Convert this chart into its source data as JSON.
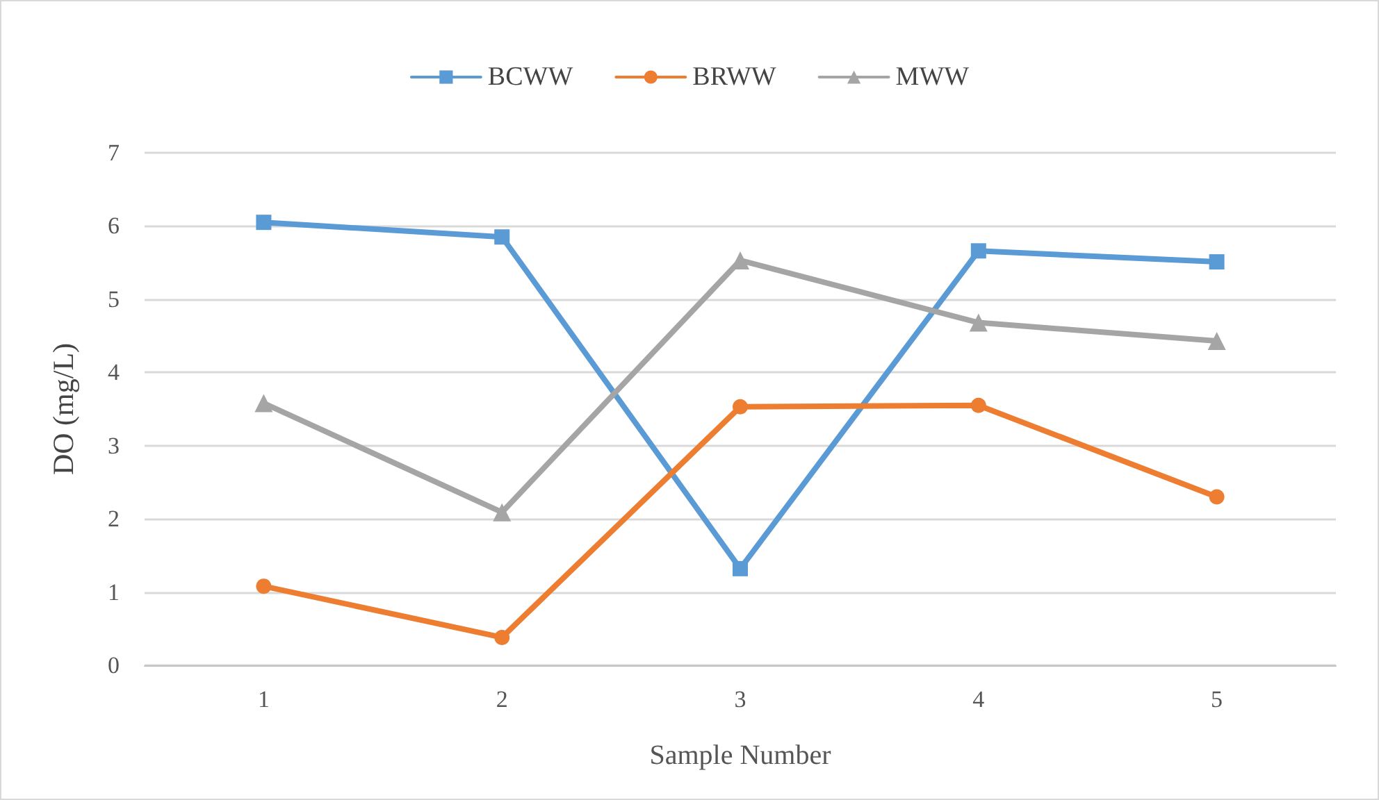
{
  "chart_data": {
    "type": "line",
    "xlabel": "Sample Number",
    "ylabel": "DO (mg/L)",
    "categories": [
      "1",
      "2",
      "3",
      "4",
      "5"
    ],
    "series": [
      {
        "name": "BCWW",
        "color": "#5b9bd5",
        "marker": "square",
        "values": [
          6.05,
          5.85,
          1.32,
          5.66,
          5.51
        ]
      },
      {
        "name": "BRWW",
        "color": "#ed7d31",
        "marker": "circle",
        "values": [
          1.08,
          0.38,
          3.53,
          3.55,
          2.3
        ]
      },
      {
        "name": "MWW",
        "color": "#a5a5a5",
        "marker": "triangle",
        "values": [
          3.58,
          2.09,
          5.53,
          4.68,
          4.43
        ]
      }
    ],
    "ylim": [
      0,
      7
    ],
    "yticks": [
      0,
      1,
      2,
      3,
      4,
      5,
      6,
      7
    ],
    "grid": "y",
    "legend": "top",
    "line_style": "solid"
  }
}
